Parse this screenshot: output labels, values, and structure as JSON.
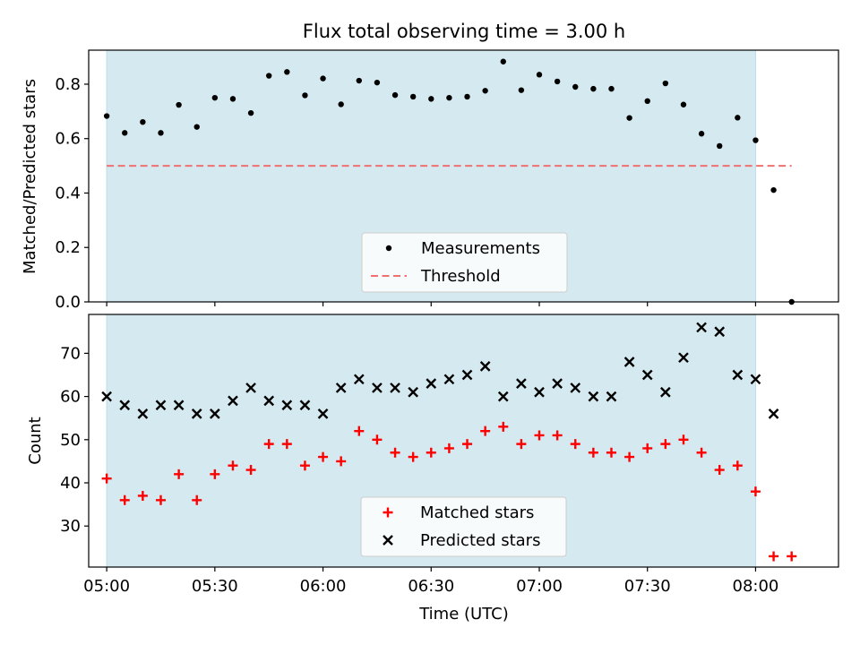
{
  "chart_data": [
    {
      "type": "scatter",
      "title": "Flux total observing time = 3.00 h",
      "xlabel": "",
      "ylabel": "Matched/Predicted stars",
      "ylim": [
        0,
        0.925
      ],
      "yticks": [
        "0.0",
        "0.2",
        "0.4",
        "0.6",
        "0.8"
      ],
      "x_range": [
        "04:55",
        "08:23"
      ],
      "shaded_span": [
        "05:00",
        "08:00"
      ],
      "shaded_color": "#d5eaf0",
      "legend_location": "lower center",
      "series": [
        {
          "name": "Measurements",
          "marker": "dot",
          "color": "#000000",
          "x": [
            "05:00",
            "05:05",
            "05:10",
            "05:15",
            "05:20",
            "05:25",
            "05:30",
            "05:35",
            "05:40",
            "05:45",
            "05:50",
            "05:55",
            "06:00",
            "06:05",
            "06:10",
            "06:15",
            "06:20",
            "06:25",
            "06:30",
            "06:35",
            "06:40",
            "06:45",
            "06:50",
            "06:55",
            "07:00",
            "07:05",
            "07:10",
            "07:15",
            "07:20",
            "07:25",
            "07:30",
            "07:35",
            "07:40",
            "07:45",
            "07:50",
            "07:55",
            "08:00",
            "08:05",
            "08:10"
          ],
          "y": [
            0.683,
            0.621,
            0.661,
            0.621,
            0.724,
            0.643,
            0.75,
            0.746,
            0.694,
            0.831,
            0.845,
            0.759,
            0.821,
            0.726,
            0.813,
            0.806,
            0.76,
            0.754,
            0.746,
            0.75,
            0.754,
            0.776,
            0.883,
            0.778,
            0.835,
            0.81,
            0.79,
            0.783,
            0.783,
            0.676,
            0.738,
            0.803,
            0.725,
            0.618,
            0.573,
            0.677,
            0.594,
            0.411,
            0.0
          ]
        },
        {
          "name": "Threshold",
          "style": "dashed",
          "color": "#f07070",
          "x": [
            "05:00",
            "08:10"
          ],
          "y": [
            0.5,
            0.5
          ]
        }
      ]
    },
    {
      "type": "scatter",
      "title": "",
      "xlabel": "Time (UTC)",
      "ylabel": "Count",
      "ylim": [
        20.5,
        79
      ],
      "yticks": [
        "30",
        "40",
        "50",
        "60",
        "70"
      ],
      "xticks": [
        "05:00",
        "05:30",
        "06:00",
        "06:30",
        "07:00",
        "07:30",
        "08:00"
      ],
      "x_range": [
        "04:55",
        "08:23"
      ],
      "shaded_span": [
        "05:00",
        "08:00"
      ],
      "shaded_color": "#d5eaf0",
      "legend_location": "lower center",
      "series": [
        {
          "name": "Matched stars",
          "marker": "plus",
          "color": "#ff0000",
          "x": [
            "05:00",
            "05:05",
            "05:10",
            "05:15",
            "05:20",
            "05:25",
            "05:30",
            "05:35",
            "05:40",
            "05:45",
            "05:50",
            "05:55",
            "06:00",
            "06:05",
            "06:10",
            "06:15",
            "06:20",
            "06:25",
            "06:30",
            "06:35",
            "06:40",
            "06:45",
            "06:50",
            "06:55",
            "07:00",
            "07:05",
            "07:10",
            "07:15",
            "07:20",
            "07:25",
            "07:30",
            "07:35",
            "07:40",
            "07:45",
            "07:50",
            "07:55",
            "08:00",
            "08:05",
            "08:10"
          ],
          "y": [
            41,
            36,
            37,
            36,
            42,
            36,
            42,
            44,
            43,
            49,
            49,
            44,
            46,
            45,
            52,
            50,
            47,
            46,
            47,
            48,
            49,
            52,
            53,
            49,
            51,
            51,
            49,
            47,
            47,
            46,
            48,
            49,
            50,
            47,
            43,
            44,
            38,
            23,
            23
          ]
        },
        {
          "name": "Predicted stars",
          "marker": "x",
          "color": "#000000",
          "x": [
            "05:00",
            "05:05",
            "05:10",
            "05:15",
            "05:20",
            "05:25",
            "05:30",
            "05:35",
            "05:40",
            "05:45",
            "05:50",
            "05:55",
            "06:00",
            "06:05",
            "06:10",
            "06:15",
            "06:20",
            "06:25",
            "06:30",
            "06:35",
            "06:40",
            "06:45",
            "06:50",
            "06:55",
            "07:00",
            "07:05",
            "07:10",
            "07:15",
            "07:20",
            "07:25",
            "07:30",
            "07:35",
            "07:40",
            "07:45",
            "07:50",
            "07:55",
            "08:00",
            "08:05"
          ],
          "y": [
            60,
            58,
            56,
            58,
            58,
            56,
            56,
            59,
            62,
            59,
            58,
            58,
            56,
            62,
            64,
            62,
            62,
            61,
            63,
            64,
            65,
            67,
            60,
            63,
            61,
            63,
            62,
            60,
            60,
            68,
            65,
            61,
            69,
            76,
            75,
            65,
            64,
            56
          ]
        }
      ]
    }
  ]
}
